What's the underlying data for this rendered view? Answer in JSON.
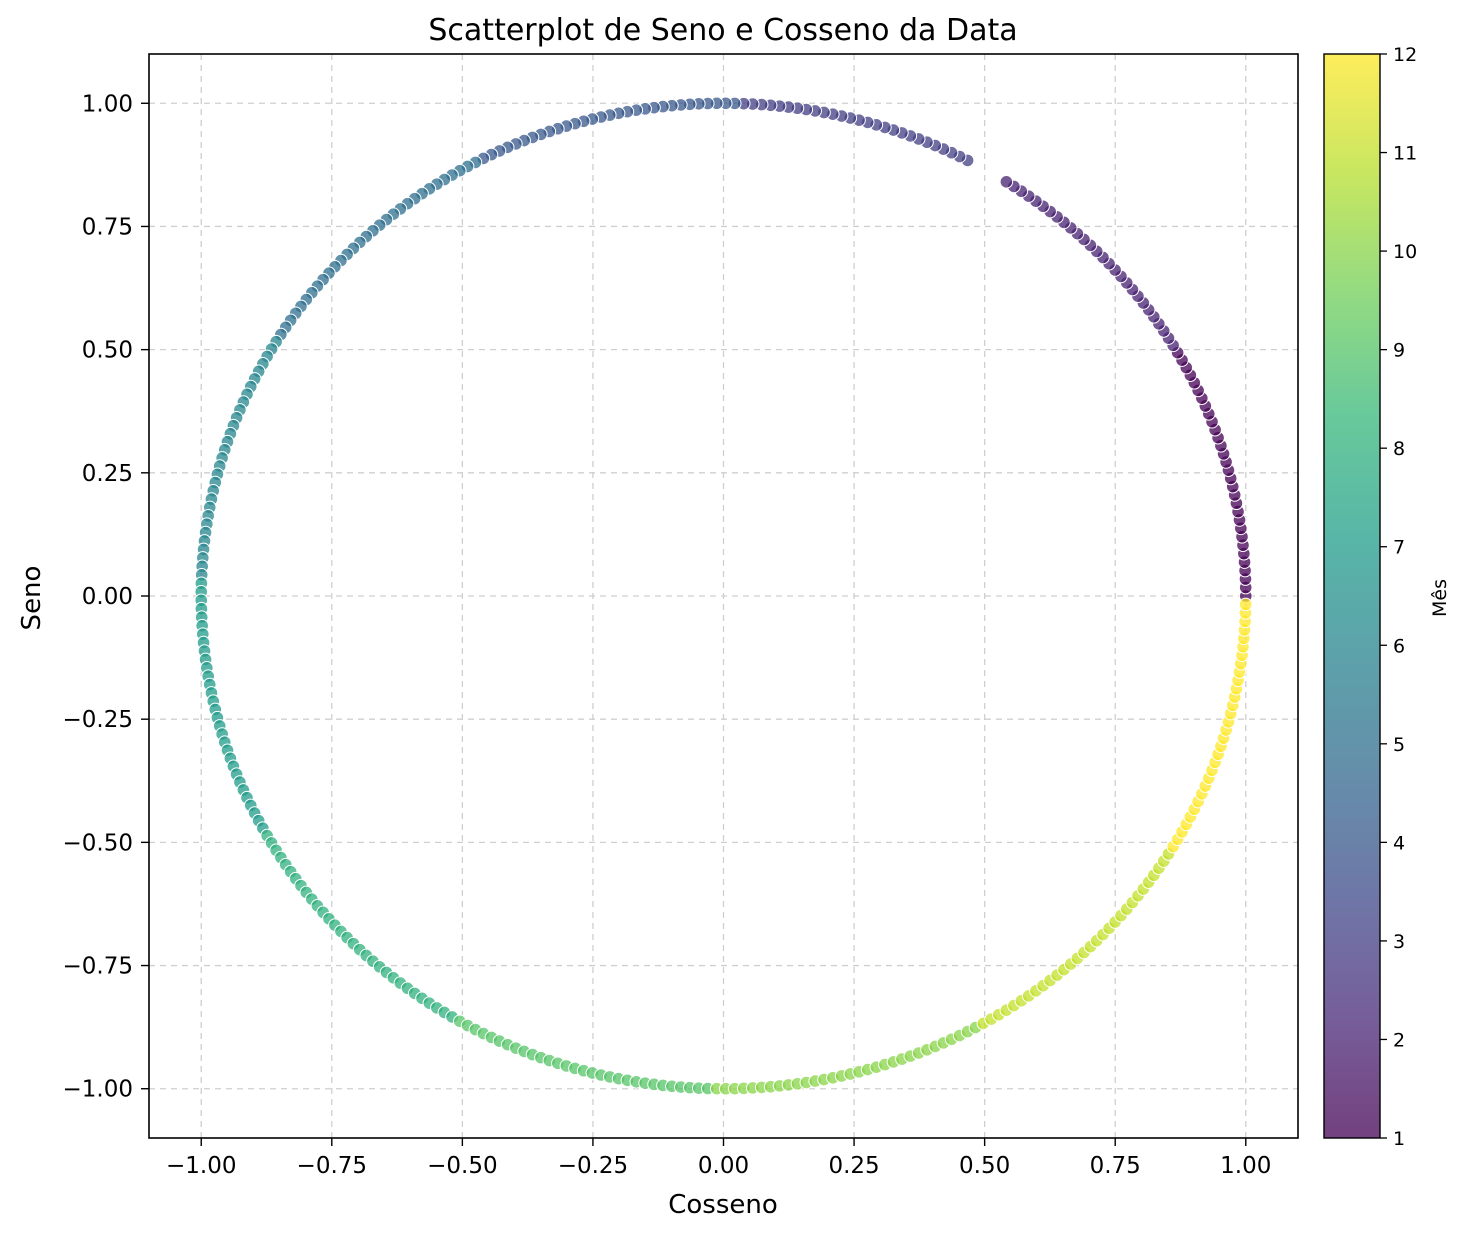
{
  "chart_data": {
    "type": "scatter",
    "title": "Scatterplot de Seno e Cosseno da Data",
    "xlabel": "Cosseno",
    "ylabel": "Seno",
    "xlim": [
      -1.1,
      1.1
    ],
    "ylim": [
      -1.1,
      1.1
    ],
    "x_ticks": [
      -1.0,
      -0.75,
      -0.5,
      -0.25,
      0.0,
      0.25,
      0.5,
      0.75,
      1.0
    ],
    "y_ticks": [
      -1.0,
      -0.75,
      -0.5,
      -0.25,
      0.0,
      0.25,
      0.5,
      0.75,
      1.0
    ],
    "x_tick_labels": [
      "−1.00",
      "−0.75",
      "−0.50",
      "−0.25",
      "0.00",
      "0.25",
      "0.50",
      "0.75",
      "1.00"
    ],
    "y_tick_labels": [
      "−1.00",
      "−0.75",
      "−0.50",
      "−0.25",
      "0.00",
      "0.25",
      "0.50",
      "0.75",
      "1.00"
    ],
    "grid": true,
    "grid_style": "dashed",
    "colormap": "viridis",
    "point_alpha": 0.75,
    "point_edge_color": "#ffffff",
    "colorbar": {
      "label": "Mês",
      "range": [
        1,
        12
      ],
      "ticks": [
        1,
        2,
        3,
        4,
        5,
        6,
        7,
        8,
        9,
        10,
        11,
        12
      ],
      "tick_labels": [
        "1",
        "2",
        "3",
        "4",
        "5",
        "6",
        "7",
        "8",
        "9",
        "10",
        "11",
        "12"
      ],
      "colors": [
        "#440154",
        "#482878",
        "#3e4989",
        "#31688e",
        "#26828e",
        "#1f9e89",
        "#35b779",
        "#6ece58",
        "#b5de2b",
        "#fde725"
      ]
    },
    "series": [
      {
        "description": "daily points: cos(2π·d/N), sin(2π·d/N), colored by month",
        "points_per_month": [
          31,
          28,
          31,
          30,
          31,
          30,
          31,
          31,
          30,
          31,
          30,
          31
        ],
        "gap_between_months": {
          "months": [
            2,
            3
          ],
          "angle_start_deg": 62,
          "angle_end_deg": 58
        }
      }
    ]
  }
}
